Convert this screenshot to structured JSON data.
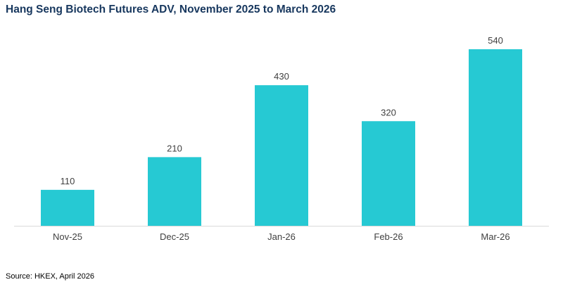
{
  "chart_data": {
    "type": "bar",
    "title": "Hang Seng Biotech Futures ADV, November 2025 to March 2026",
    "categories": [
      "Nov-25",
      "Dec-25",
      "Jan-26",
      "Feb-26",
      "Mar-26"
    ],
    "values": [
      110,
      210,
      430,
      320,
      540
    ],
    "data_labels": [
      "110",
      "210",
      "430",
      "320",
      "540"
    ],
    "xlabel": "",
    "ylabel": "",
    "ylim": [
      0,
      540
    ],
    "grid": false,
    "legend": "none",
    "bar_color": "#26c9d3",
    "axis_color": "#d9d9d9"
  },
  "source": "Source: HKEX, April 2026"
}
